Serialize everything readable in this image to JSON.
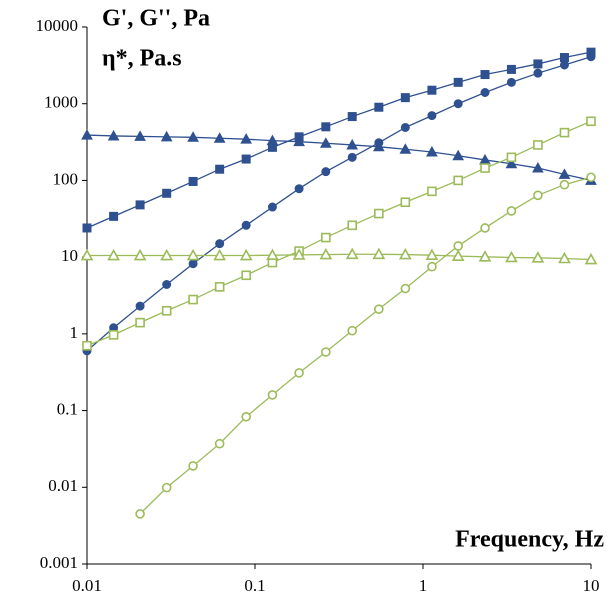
{
  "chart_data": {
    "type": "line",
    "annotations": [
      "G', G'', Pa",
      "η*, Pa.s"
    ],
    "xlabel": "Frequency, Hz",
    "log_x": true,
    "log_y": true,
    "grid": false,
    "x": [
      0.01,
      0.0144,
      0.0207,
      0.0298,
      0.0428,
      0.0616,
      0.0886,
      0.127,
      0.183,
      0.264,
      0.379,
      0.546,
      0.785,
      1.13,
      1.62,
      2.34,
      3.36,
      4.83,
      6.95,
      10
    ],
    "xlim": [
      0.01,
      10
    ],
    "xticks": [
      0.01,
      0.1,
      1,
      10
    ],
    "ylim": [
      0.001,
      10000
    ],
    "yticks": [
      0.001,
      0.01,
      0.1,
      1,
      10,
      100,
      1000,
      10000
    ],
    "series": [
      {
        "color": "#2f5190",
        "marker": "square",
        "filled": true,
        "values": [
          24,
          34,
          48,
          68,
          97,
          140,
          190,
          270,
          370,
          500,
          680,
          900,
          1200,
          1500,
          1900,
          2400,
          2800,
          3300,
          4000,
          4700
        ]
      },
      {
        "color": "#2f5190",
        "marker": "circle",
        "filled": true,
        "values": [
          0.6,
          1.2,
          2.3,
          4.4,
          8.2,
          15,
          26,
          45,
          78,
          130,
          200,
          310,
          490,
          700,
          1000,
          1400,
          1900,
          2500,
          3200,
          4100
        ]
      },
      {
        "color": "#2f5190",
        "marker": "triangle",
        "filled": true,
        "values": [
          390,
          380,
          375,
          370,
          365,
          355,
          345,
          330,
          320,
          305,
          290,
          275,
          255,
          235,
          210,
          185,
          165,
          145,
          120,
          100
        ]
      },
      {
        "color": "#9bbb59",
        "marker": "square",
        "filled": false,
        "values": [
          0.7,
          0.97,
          1.4,
          2.0,
          2.8,
          4.1,
          5.8,
          8.5,
          12,
          18,
          26,
          37,
          52,
          72,
          100,
          145,
          200,
          290,
          420,
          590
        ]
      },
      {
        "color": "#9bbb59",
        "marker": "triangle",
        "filled": false,
        "values": [
          10.5,
          10.5,
          10.5,
          10.5,
          10.5,
          10.5,
          10.5,
          10.6,
          10.7,
          10.8,
          10.9,
          10.9,
          10.8,
          10.6,
          10.3,
          10.1,
          9.9,
          9.8,
          9.6,
          9.3
        ]
      },
      {
        "color": "#9bbb59",
        "marker": "circle",
        "filled": false,
        "values": [
          null,
          null,
          0.0045,
          0.0099,
          0.019,
          0.037,
          0.083,
          0.16,
          0.31,
          0.58,
          1.1,
          2.1,
          3.9,
          7.5,
          14,
          24,
          40,
          64,
          88,
          110
        ]
      }
    ]
  }
}
